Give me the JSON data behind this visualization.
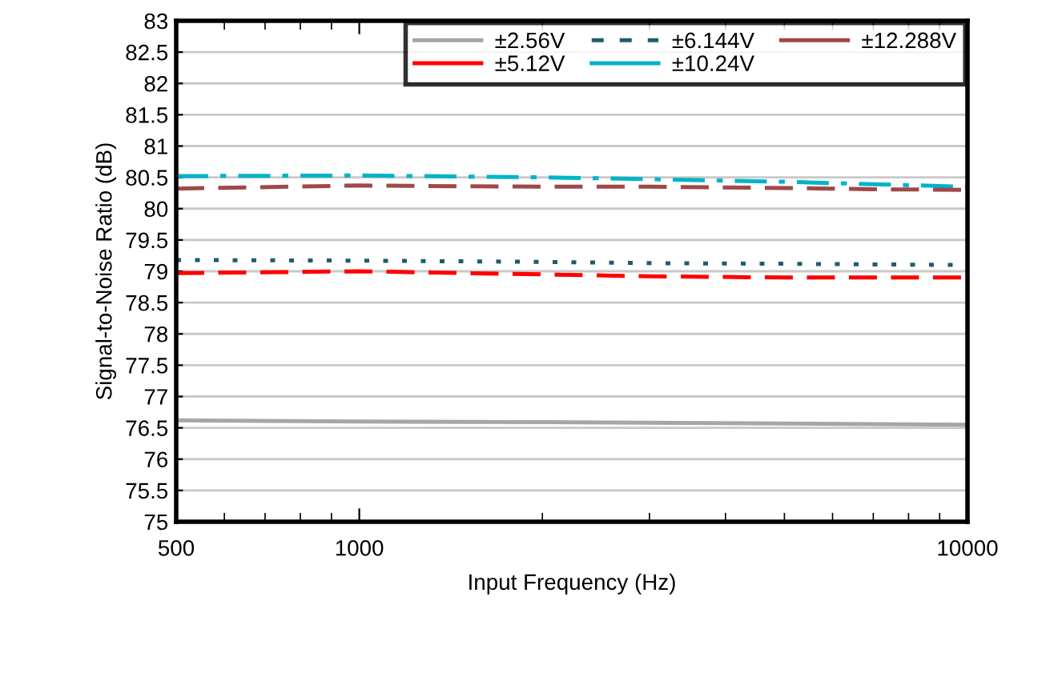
{
  "chart_data": {
    "type": "line",
    "xlabel": "Input Frequency (Hz)",
    "ylabel": "Signal-to-Noise Ratio (dB)",
    "x": [
      500,
      1000,
      2000,
      3000,
      5000,
      7000,
      10000
    ],
    "series": [
      {
        "name": "±2.56V",
        "color": "#a6a6a6",
        "line_style": "solid",
        "values": [
          76.62,
          76.6,
          76.59,
          76.58,
          76.57,
          76.56,
          76.55
        ]
      },
      {
        "name": "±5.12V",
        "color": "#ff0000",
        "line_style": "dashed",
        "values": [
          78.97,
          79.0,
          78.95,
          78.92,
          78.9,
          78.9,
          78.9
        ]
      },
      {
        "name": "±6.144V",
        "color": "#1f5c6b",
        "line_style": "dotted",
        "values": [
          79.18,
          79.17,
          79.15,
          79.13,
          79.12,
          79.11,
          79.1
        ]
      },
      {
        "name": "±10.24V",
        "color": "#00b4c8",
        "line_style": "dashdot",
        "values": [
          80.52,
          80.53,
          80.5,
          80.47,
          80.43,
          80.39,
          80.35
        ]
      },
      {
        "name": "±12.288V",
        "color": "#a04848",
        "line_style": "dashed",
        "values": [
          80.32,
          80.37,
          80.35,
          80.35,
          80.33,
          80.31,
          80.3
        ]
      }
    ],
    "log": "x",
    "xlim": [
      500,
      10000
    ],
    "xticks": [
      500,
      1000,
      10000
    ],
    "ylim": [
      75,
      83
    ],
    "yticks": [
      75,
      75.5,
      76,
      76.5,
      77,
      77.5,
      78,
      78.5,
      79,
      79.5,
      80,
      80.5,
      81,
      81.5,
      82,
      82.5,
      83
    ],
    "grid": "y",
    "legend": "top right"
  }
}
